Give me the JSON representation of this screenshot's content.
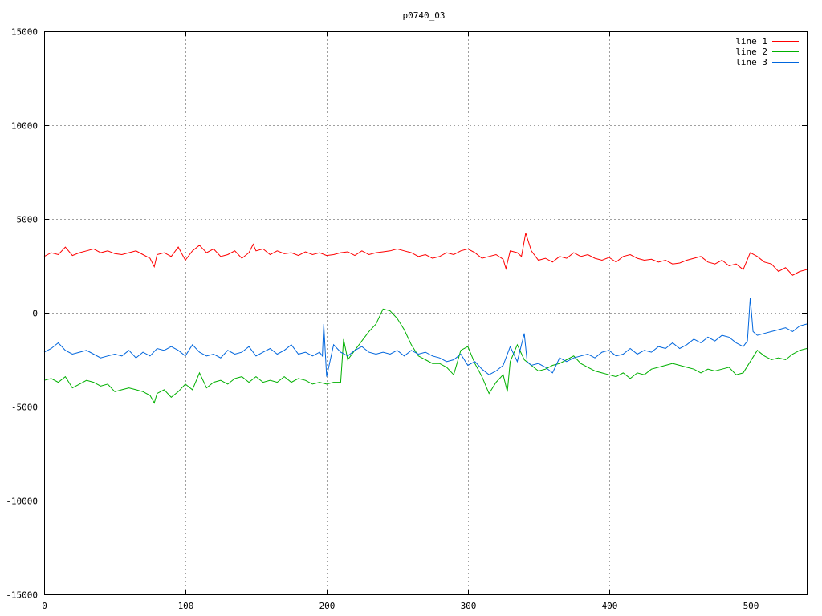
{
  "chart_data": {
    "type": "line",
    "title": "p0740_03",
    "xlabel": "",
    "ylabel": "",
    "xlim": [
      0,
      540
    ],
    "ylim": [
      -15000,
      15000
    ],
    "x_ticks": [
      0,
      100,
      200,
      300,
      400,
      500
    ],
    "y_ticks": [
      -15000,
      -10000,
      -5000,
      0,
      5000,
      10000,
      15000
    ],
    "grid": true,
    "legend_position": "top-right",
    "series": [
      {
        "name": "line 1",
        "color": "#ff0000",
        "x": [
          0,
          5,
          10,
          15,
          20,
          25,
          30,
          35,
          40,
          45,
          50,
          55,
          60,
          65,
          70,
          75,
          78,
          80,
          85,
          90,
          95,
          100,
          105,
          110,
          115,
          120,
          125,
          130,
          135,
          140,
          145,
          148,
          150,
          155,
          160,
          165,
          170,
          175,
          180,
          185,
          190,
          195,
          200,
          205,
          210,
          215,
          220,
          225,
          230,
          235,
          240,
          245,
          250,
          255,
          260,
          265,
          270,
          275,
          280,
          285,
          290,
          295,
          300,
          305,
          310,
          315,
          320,
          325,
          327,
          330,
          335,
          338,
          341,
          345,
          350,
          355,
          360,
          365,
          370,
          375,
          380,
          385,
          390,
          395,
          400,
          405,
          410,
          415,
          420,
          425,
          430,
          435,
          440,
          445,
          450,
          455,
          460,
          465,
          470,
          475,
          480,
          485,
          490,
          495,
          500,
          505,
          510,
          515,
          520,
          525,
          530,
          535,
          540
        ],
        "y": [
          3000,
          3200,
          3100,
          3500,
          3050,
          3200,
          3300,
          3400,
          3200,
          3300,
          3150,
          3100,
          3200,
          3300,
          3100,
          2900,
          2450,
          3100,
          3200,
          3000,
          3500,
          2800,
          3300,
          3600,
          3200,
          3400,
          3000,
          3100,
          3300,
          2900,
          3200,
          3650,
          3300,
          3400,
          3100,
          3300,
          3150,
          3200,
          3050,
          3250,
          3100,
          3200,
          3050,
          3100,
          3200,
          3250,
          3050,
          3300,
          3100,
          3200,
          3250,
          3300,
          3400,
          3300,
          3200,
          3000,
          3100,
          2900,
          3000,
          3200,
          3100,
          3300,
          3400,
          3200,
          2900,
          3000,
          3100,
          2850,
          2350,
          3300,
          3200,
          3000,
          4250,
          3300,
          2800,
          2900,
          2700,
          3000,
          2900,
          3200,
          3000,
          3100,
          2900,
          2800,
          2950,
          2700,
          3000,
          3100,
          2900,
          2800,
          2850,
          2700,
          2800,
          2600,
          2650,
          2800,
          2900,
          3000,
          2700,
          2600,
          2800,
          2500,
          2600,
          2300,
          3200,
          3000,
          2700,
          2600,
          2200,
          2400,
          2000,
          2200,
          2300
        ]
      },
      {
        "name": "line 2",
        "color": "#00b000",
        "x": [
          0,
          5,
          10,
          15,
          20,
          25,
          30,
          35,
          40,
          45,
          50,
          55,
          60,
          65,
          70,
          75,
          78,
          80,
          85,
          90,
          95,
          100,
          105,
          110,
          115,
          120,
          125,
          130,
          135,
          140,
          145,
          150,
          155,
          160,
          165,
          170,
          175,
          180,
          185,
          190,
          195,
          200,
          205,
          210,
          212,
          215,
          220,
          225,
          230,
          235,
          240,
          245,
          250,
          255,
          260,
          265,
          270,
          275,
          280,
          285,
          290,
          295,
          300,
          305,
          310,
          315,
          320,
          325,
          328,
          330,
          335,
          340,
          345,
          350,
          355,
          360,
          365,
          370,
          375,
          380,
          385,
          390,
          395,
          400,
          405,
          410,
          415,
          420,
          425,
          430,
          435,
          440,
          445,
          450,
          455,
          460,
          465,
          470,
          475,
          480,
          485,
          490,
          495,
          500,
          505,
          510,
          515,
          520,
          525,
          530,
          535,
          540
        ],
        "y": [
          -3600,
          -3500,
          -3700,
          -3400,
          -4000,
          -3800,
          -3600,
          -3700,
          -3900,
          -3800,
          -4200,
          -4100,
          -4000,
          -4100,
          -4200,
          -4400,
          -4800,
          -4300,
          -4100,
          -4500,
          -4200,
          -3800,
          -4100,
          -3200,
          -4000,
          -3700,
          -3600,
          -3800,
          -3500,
          -3400,
          -3700,
          -3400,
          -3700,
          -3600,
          -3700,
          -3400,
          -3700,
          -3500,
          -3600,
          -3800,
          -3700,
          -3800,
          -3700,
          -3700,
          -1400,
          -2500,
          -2000,
          -1500,
          -1000,
          -600,
          200,
          100,
          -300,
          -900,
          -1700,
          -2300,
          -2500,
          -2700,
          -2700,
          -2900,
          -3300,
          -2000,
          -1800,
          -2700,
          -3400,
          -4300,
          -3700,
          -3300,
          -4200,
          -2600,
          -1700,
          -2500,
          -2800,
          -3100,
          -3000,
          -2800,
          -2700,
          -2500,
          -2300,
          -2700,
          -2900,
          -3100,
          -3200,
          -3300,
          -3400,
          -3200,
          -3500,
          -3200,
          -3300,
          -3000,
          -2900,
          -2800,
          -2700,
          -2800,
          -2900,
          -3000,
          -3200,
          -3000,
          -3100,
          -3000,
          -2900,
          -3300,
          -3200,
          -2600,
          -2000,
          -2300,
          -2500,
          -2400,
          -2500,
          -2200,
          -2000,
          -1900
        ]
      },
      {
        "name": "line 3",
        "color": "#0066dd",
        "x": [
          0,
          5,
          10,
          15,
          20,
          25,
          30,
          35,
          40,
          45,
          50,
          55,
          60,
          65,
          70,
          75,
          80,
          85,
          90,
          95,
          100,
          105,
          110,
          115,
          120,
          125,
          130,
          135,
          140,
          145,
          150,
          155,
          160,
          165,
          170,
          175,
          180,
          185,
          190,
          195,
          197,
          198,
          200,
          205,
          210,
          215,
          220,
          225,
          230,
          235,
          240,
          245,
          250,
          255,
          260,
          265,
          270,
          275,
          280,
          285,
          290,
          295,
          300,
          305,
          310,
          315,
          320,
          325,
          330,
          335,
          340,
          342,
          345,
          350,
          355,
          360,
          365,
          370,
          375,
          380,
          385,
          390,
          395,
          400,
          405,
          410,
          415,
          420,
          425,
          430,
          435,
          440,
          445,
          450,
          455,
          460,
          465,
          470,
          475,
          480,
          485,
          490,
          495,
          498,
          500,
          502,
          505,
          510,
          515,
          520,
          525,
          530,
          535,
          540
        ],
        "y": [
          -2100,
          -1900,
          -1600,
          -2000,
          -2200,
          -2100,
          -2000,
          -2200,
          -2400,
          -2300,
          -2200,
          -2300,
          -2000,
          -2400,
          -2100,
          -2300,
          -1900,
          -2000,
          -1800,
          -2000,
          -2300,
          -1700,
          -2100,
          -2300,
          -2200,
          -2400,
          -2000,
          -2200,
          -2100,
          -1800,
          -2300,
          -2100,
          -1900,
          -2200,
          -2000,
          -1700,
          -2200,
          -2100,
          -2300,
          -2100,
          -2300,
          -600,
          -3400,
          -1700,
          -2100,
          -2300,
          -2000,
          -1800,
          -2100,
          -2200,
          -2100,
          -2200,
          -2000,
          -2300,
          -2000,
          -2200,
          -2100,
          -2300,
          -2400,
          -2600,
          -2500,
          -2200,
          -2800,
          -2600,
          -3000,
          -3300,
          -3100,
          -2800,
          -1800,
          -2600,
          -1100,
          -2600,
          -2800,
          -2700,
          -2900,
          -3200,
          -2400,
          -2600,
          -2400,
          -2300,
          -2200,
          -2400,
          -2100,
          -2000,
          -2300,
          -2200,
          -1900,
          -2200,
          -2000,
          -2100,
          -1800,
          -1900,
          -1600,
          -1900,
          -1700,
          -1400,
          -1600,
          -1300,
          -1500,
          -1200,
          -1300,
          -1600,
          -1800,
          -1500,
          800,
          -1000,
          -1200,
          -1100,
          -1000,
          -900,
          -800,
          -1000,
          -700,
          -600
        ]
      }
    ]
  }
}
